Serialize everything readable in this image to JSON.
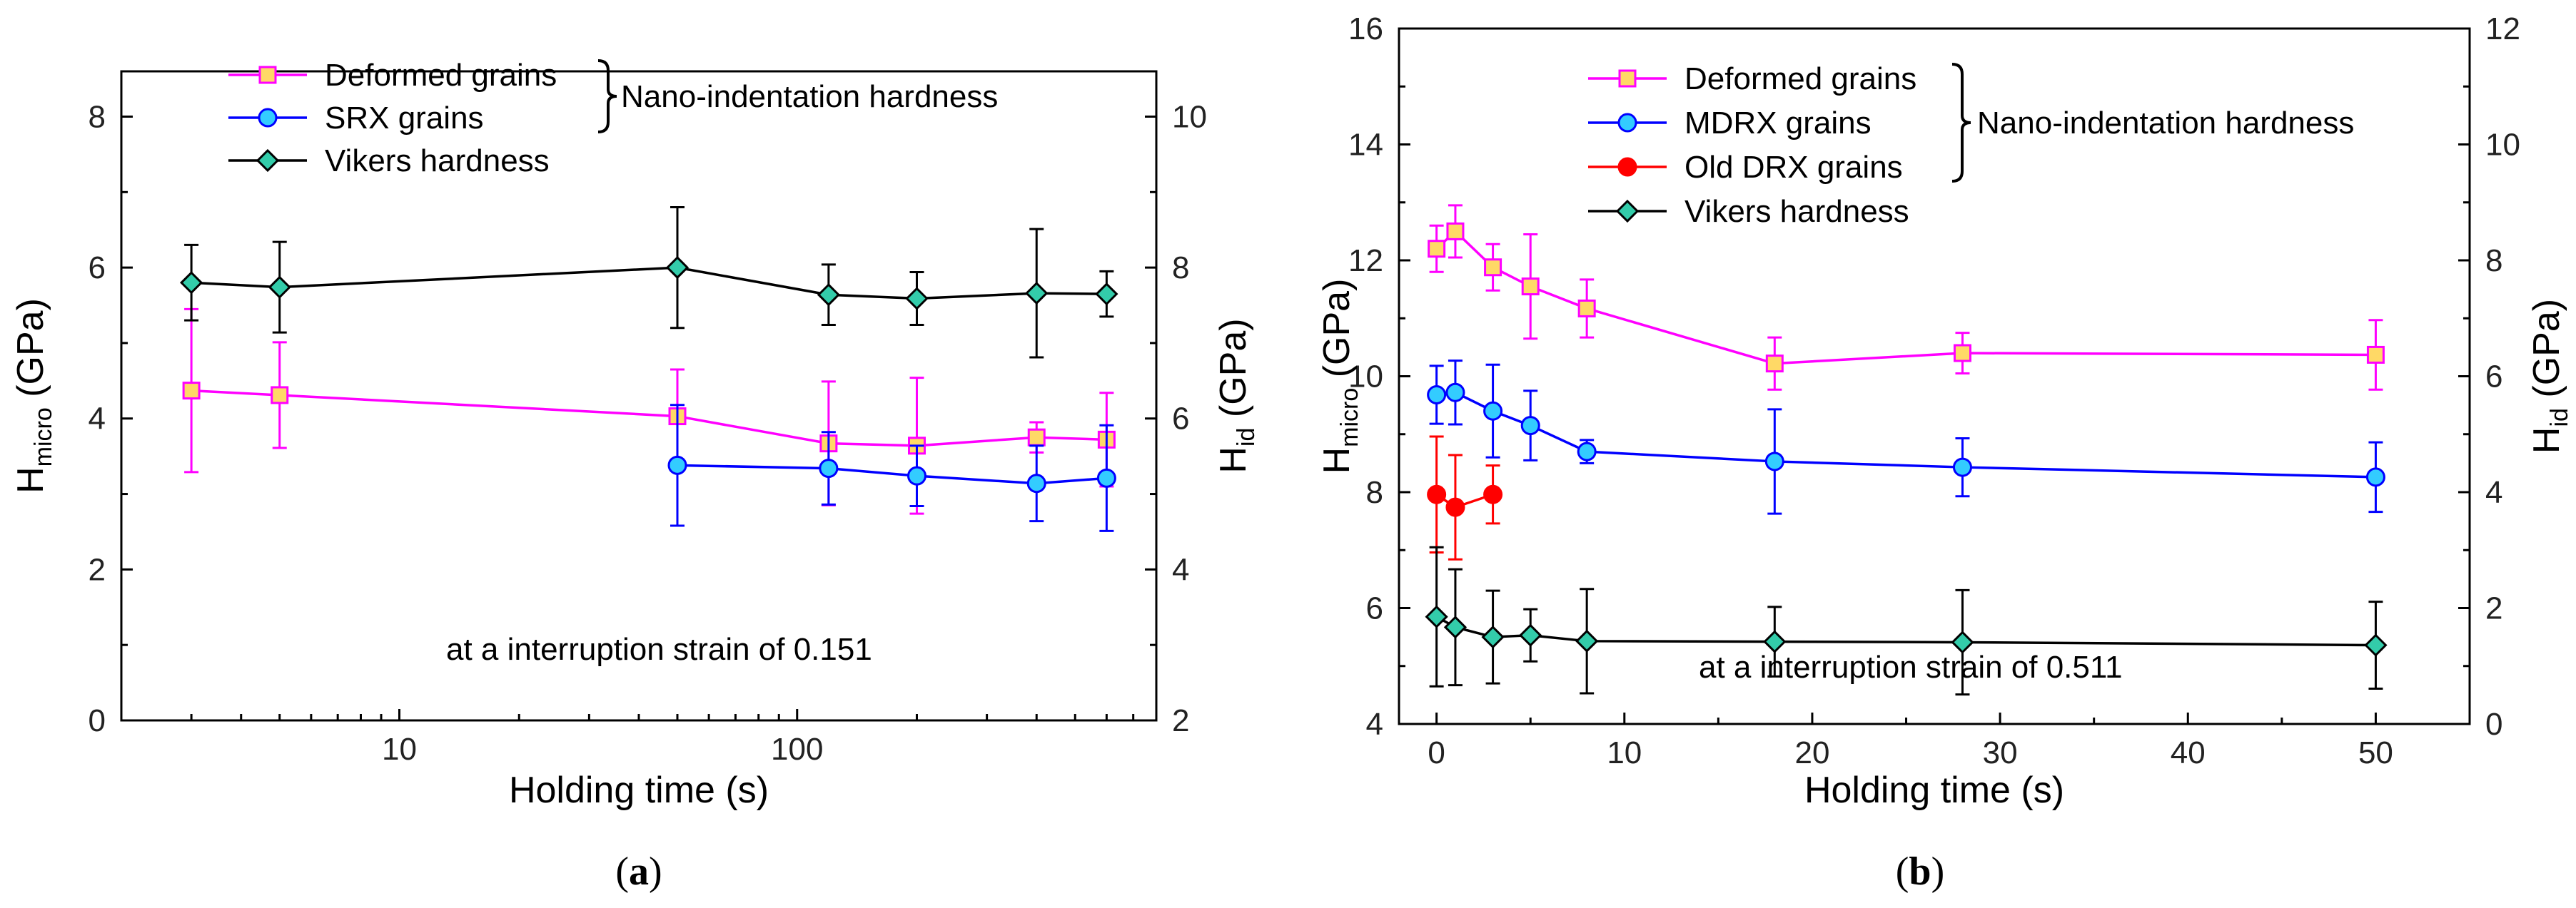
{
  "chart_data": [
    {
      "id": "a",
      "type": "line",
      "panel_label": "a",
      "xscale": "log",
      "xlim": [
        2,
        800
      ],
      "xticks": [
        10,
        100
      ],
      "xlabel": "Holding time (s)",
      "ylabel_main": "H",
      "ylabel_sub": "micro",
      "ylabel_unit": " (GPa)",
      "ylim": [
        0,
        8.6
      ],
      "yticks": [
        0,
        2,
        4,
        6,
        8
      ],
      "y2label_main": "H",
      "y2label_sub": "id",
      "y2label_unit": " (GPa)",
      "y2lim": [
        2,
        10.6
      ],
      "y2ticks": [
        2,
        4,
        6,
        8,
        10
      ],
      "annotation": "at a interruption strain of 0.151",
      "bracket_label": "Nano-indentation hardness",
      "bracket_series": [
        0,
        1
      ],
      "series": [
        {
          "name": "Deformed grains",
          "color": "#ff00ff",
          "marker": "square",
          "marker_fill": "#ffd966",
          "axis": "left",
          "x": [
            3,
            5,
            50,
            120,
            200,
            400,
            600
          ],
          "y": [
            4.37,
            4.31,
            4.03,
            3.67,
            3.64,
            3.75,
            3.72
          ],
          "err": [
            1.08,
            0.7,
            0.62,
            0.82,
            0.9,
            0.2,
            0.62
          ]
        },
        {
          "name": "SRX grains",
          "color": "#0000ff",
          "marker": "circle",
          "marker_fill": "#33ccff",
          "axis": "left",
          "x": [
            50,
            120,
            200,
            400,
            600
          ],
          "y": [
            3.38,
            3.34,
            3.24,
            3.14,
            3.21
          ],
          "err": [
            0.8,
            0.48,
            0.4,
            0.5,
            0.7
          ]
        },
        {
          "name": "Vikers hardness",
          "color": "#000000",
          "marker": "diamond",
          "marker_fill": "#33ccaa",
          "axis": "right",
          "x": [
            3,
            5,
            50,
            120,
            200,
            400,
            600
          ],
          "y": [
            7.8,
            7.74,
            8.0,
            7.64,
            7.59,
            7.66,
            7.65
          ],
          "err": [
            0.5,
            0.6,
            0.8,
            0.4,
            0.35,
            0.85,
            0.3
          ]
        }
      ]
    },
    {
      "id": "b",
      "type": "line",
      "panel_label": "b",
      "xscale": "linear",
      "xlim": [
        -2,
        55
      ],
      "xticks": [
        0,
        10,
        20,
        30,
        40,
        50
      ],
      "xlabel": "Holding time (s)",
      "ylabel_main": "H",
      "ylabel_sub": "micro",
      "ylabel_unit": " (GPa)",
      "ylim": [
        4,
        16
      ],
      "yticks": [
        4,
        6,
        8,
        10,
        12,
        14,
        16
      ],
      "y2label_main": "H",
      "y2label_sub": "id",
      "y2label_unit": " (GPa)",
      "y2lim": [
        0,
        12
      ],
      "y2ticks": [
        0,
        2,
        4,
        6,
        8,
        10,
        12
      ],
      "annotation": "at a interruption strain of 0.511",
      "bracket_label": "Nano-indentation hardness",
      "bracket_series": [
        0,
        1,
        2
      ],
      "series": [
        {
          "name": "Deformed grains",
          "color": "#ff00ff",
          "marker": "square",
          "marker_fill": "#ffd966",
          "axis": "left",
          "x": [
            0,
            1,
            3,
            5,
            8,
            18,
            28,
            50
          ],
          "y": [
            12.2,
            12.5,
            11.88,
            11.55,
            11.17,
            10.22,
            10.4,
            10.37
          ],
          "err": [
            0.4,
            0.45,
            0.4,
            0.9,
            0.5,
            0.45,
            0.35,
            0.6
          ]
        },
        {
          "name": "MDRX grains",
          "color": "#0000ff",
          "marker": "circle",
          "marker_fill": "#33ccff",
          "axis": "left",
          "x": [
            0,
            1,
            3,
            5,
            8,
            18,
            28,
            50
          ],
          "y": [
            9.68,
            9.72,
            9.4,
            9.15,
            8.7,
            8.53,
            8.43,
            8.26
          ],
          "err": [
            0.5,
            0.55,
            0.8,
            0.6,
            0.2,
            0.9,
            0.5,
            0.6
          ]
        },
        {
          "name": "Old DRX grains",
          "color": "#ff0000",
          "marker": "circle",
          "marker_fill": "#ff0000",
          "axis": "left",
          "x": [
            0,
            1,
            3
          ],
          "y": [
            7.96,
            7.74,
            7.96
          ],
          "err": [
            1.0,
            0.9,
            0.5
          ]
        },
        {
          "name": "Vikers hardness",
          "color": "#000000",
          "marker": "diamond",
          "marker_fill": "#33ccaa",
          "axis": "right",
          "x": [
            0,
            1,
            3,
            5,
            8,
            18,
            28,
            50
          ],
          "y": [
            1.85,
            1.67,
            1.5,
            1.53,
            1.43,
            1.42,
            1.41,
            1.36
          ],
          "err": [
            1.2,
            1.0,
            0.8,
            0.45,
            0.9,
            0.6,
            0.9,
            0.75
          ]
        }
      ]
    }
  ]
}
